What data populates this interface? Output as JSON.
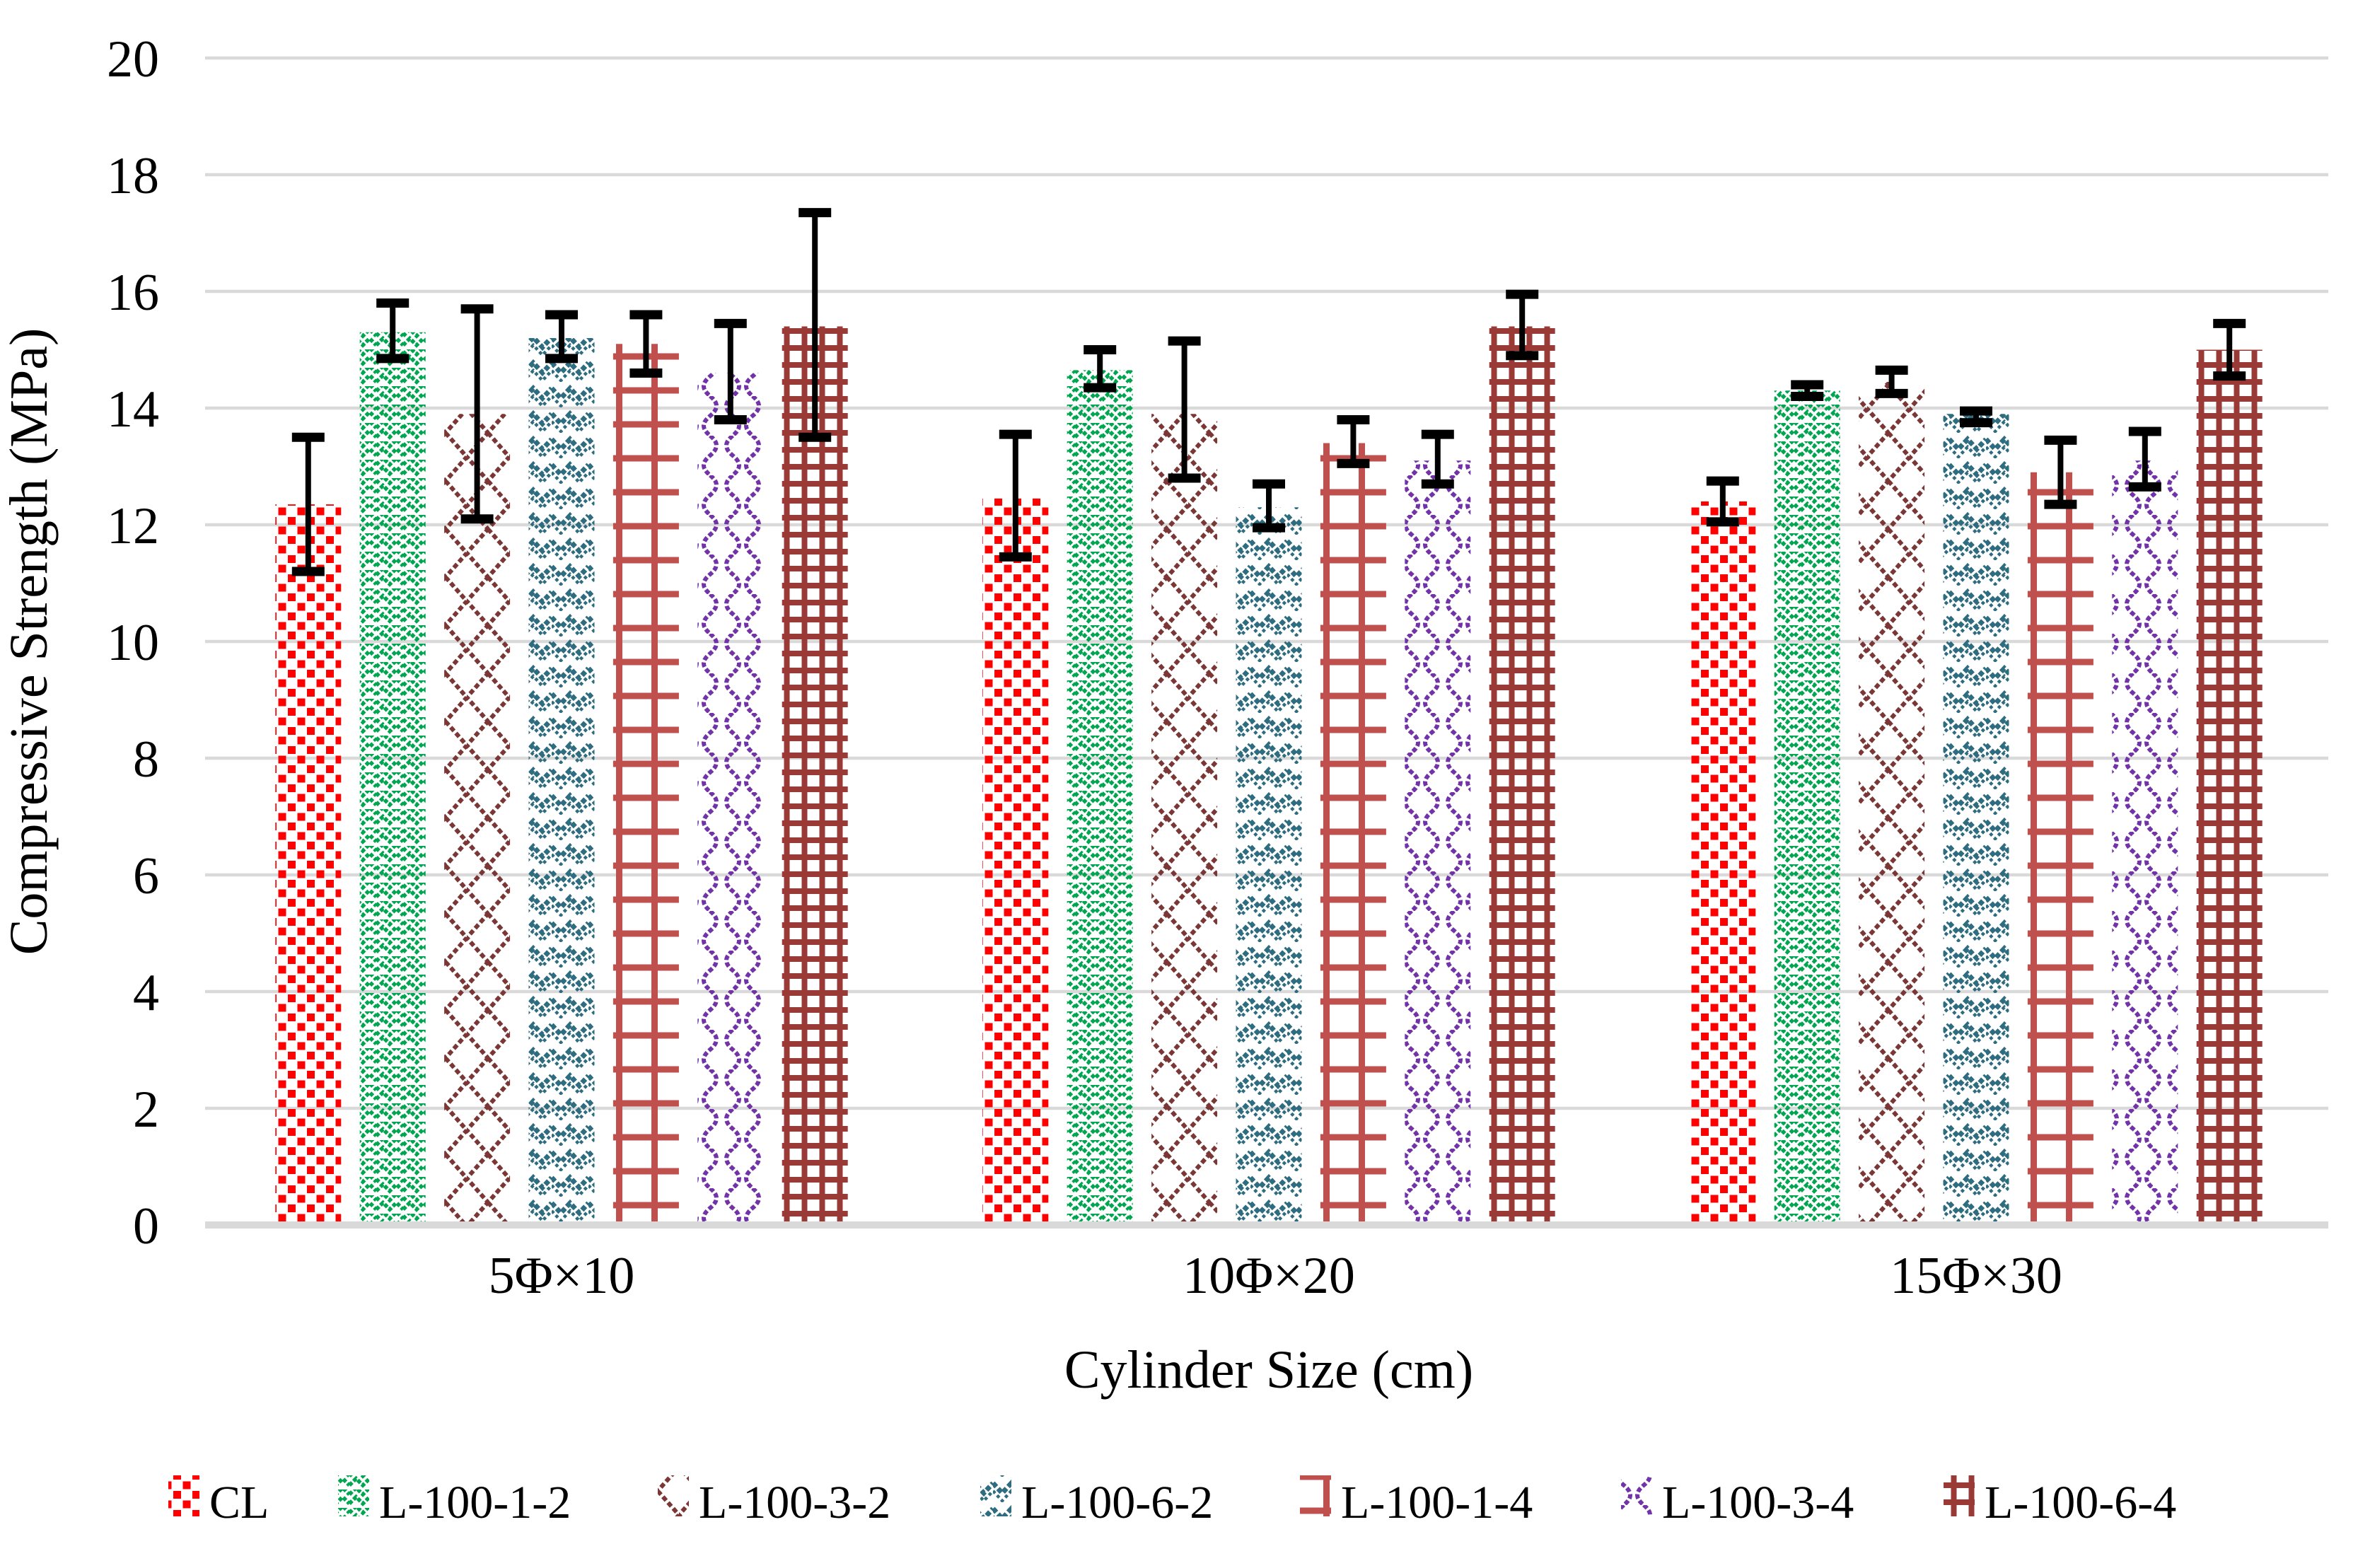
{
  "chart_data": {
    "type": "bar",
    "title": "",
    "xlabel": "Cylinder Size (cm)",
    "ylabel": "Compressive Strength (MPa)",
    "categories": [
      "5Φ×10",
      "10Φ×20",
      "15Φ×30"
    ],
    "y_axis": {
      "min": 0,
      "max": 20,
      "step": 2,
      "tick_labels": [
        "0",
        "2",
        "4",
        "6",
        "8",
        "10",
        "12",
        "14",
        "16",
        "18",
        "20"
      ]
    },
    "grid": true,
    "gridline_color": "#D9D9D9",
    "baseline_color": "#D9D9D9",
    "error_bar_color": "#000000",
    "background": "#FFFFFF",
    "legend_position": "bottom",
    "series": [
      {
        "name": "CL",
        "color": "#FF0000",
        "pattern": "scatter-squares",
        "values": [
          12.35,
          12.45,
          12.4
        ],
        "error_low": [
          11.2,
          11.45,
          12.05
        ],
        "error_high": [
          13.5,
          13.55,
          12.75
        ]
      },
      {
        "name": "L-100-1-2",
        "color": "#00A550",
        "pattern": "chevron-small",
        "values": [
          15.3,
          14.65,
          14.3
        ],
        "error_low": [
          14.85,
          14.35,
          14.2
        ],
        "error_high": [
          15.8,
          15.0,
          14.4
        ]
      },
      {
        "name": "L-100-3-2",
        "color": "#7B3735",
        "pattern": "diamond-lattice",
        "values": [
          13.9,
          13.9,
          14.45
        ],
        "error_low": [
          12.1,
          12.8,
          14.25
        ],
        "error_high": [
          15.7,
          15.15,
          14.65
        ]
      },
      {
        "name": "L-100-6-2",
        "color": "#2E6C80",
        "pattern": "wave-chevron",
        "values": [
          15.2,
          12.3,
          13.9
        ],
        "error_low": [
          14.85,
          11.95,
          13.75
        ],
        "error_high": [
          15.6,
          12.7,
          13.95
        ]
      },
      {
        "name": "L-100-1-4",
        "color": "#C0504D",
        "pattern": "wide-grid",
        "values": [
          15.1,
          13.4,
          12.9
        ],
        "error_low": [
          14.6,
          13.05,
          12.35
        ],
        "error_high": [
          15.6,
          13.8,
          13.45
        ]
      },
      {
        "name": "L-100-3-4",
        "color": "#7232A8",
        "pattern": "curve-lattice",
        "values": [
          14.6,
          13.1,
          13.1
        ],
        "error_low": [
          13.8,
          12.7,
          12.65
        ],
        "error_high": [
          15.45,
          13.55,
          13.6
        ]
      },
      {
        "name": "L-100-6-4",
        "color": "#9A3A36",
        "pattern": "dense-grid",
        "values": [
          15.4,
          15.4,
          15.0
        ],
        "error_low": [
          13.5,
          14.9,
          14.55
        ],
        "error_high": [
          17.35,
          15.95,
          15.45
        ]
      }
    ]
  }
}
